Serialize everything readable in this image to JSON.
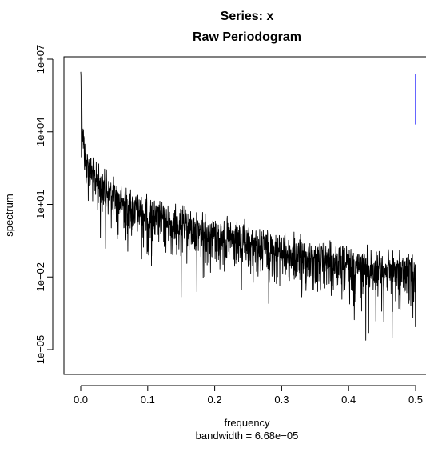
{
  "chart_data": {
    "type": "line",
    "title": "Series: x",
    "subtitle": "Raw Periodogram",
    "xlabel": "frequency",
    "xlabel_note": "bandwidth = 6.68e−05",
    "ylabel": "spectrum",
    "y_scale": "log10",
    "xlim": [
      0,
      0.5
    ],
    "ylim": [
      1e-06,
      10000000.0
    ],
    "x_ticks": [
      {
        "value": 0.0,
        "label": "0.0"
      },
      {
        "value": 0.1,
        "label": "0.1"
      },
      {
        "value": 0.2,
        "label": "0.2"
      },
      {
        "value": 0.3,
        "label": "0.3"
      },
      {
        "value": 0.4,
        "label": "0.4"
      },
      {
        "value": 0.5,
        "label": "0.5"
      }
    ],
    "y_ticks": [
      {
        "value": 1e-05,
        "label": "1e−05"
      },
      {
        "value": 0.01,
        "label": "1e−02"
      },
      {
        "value": 10,
        "label": "1e+01"
      },
      {
        "value": 10000.0,
        "label": "1e+04"
      },
      {
        "value": 10000000.0,
        "label": "1e+07"
      }
    ],
    "grid": false,
    "legend": "none",
    "series": [
      {
        "color": "#000000",
        "points": [
          [
            0.0003,
            3000000
          ],
          [
            0.001,
            300000
          ],
          [
            0.002,
            80000
          ],
          [
            0.003,
            30000
          ],
          [
            0.004,
            12000
          ],
          [
            0.005,
            6000
          ],
          [
            0.006,
            2500
          ],
          [
            0.008,
            1500
          ],
          [
            0.01,
            1000
          ],
          [
            0.015,
            600
          ],
          [
            0.02,
            300
          ],
          [
            0.025,
            220
          ],
          [
            0.03,
            140
          ],
          [
            0.04,
            80
          ],
          [
            0.05,
            45
          ],
          [
            0.06,
            30
          ],
          [
            0.08,
            15
          ],
          [
            0.1,
            8
          ],
          [
            0.12,
            5
          ],
          [
            0.15,
            3
          ],
          [
            0.2,
            1.2
          ],
          [
            0.25,
            0.5
          ],
          [
            0.3,
            0.25
          ],
          [
            0.35,
            0.12
          ],
          [
            0.4,
            0.07
          ],
          [
            0.45,
            0.045
          ],
          [
            0.5,
            0.03
          ]
        ],
        "deep_dips": [
          [
            0.15,
            0.0015
          ],
          [
            0.24,
            0.003
          ],
          [
            0.33,
            0.0015
          ],
          [
            0.39,
            0.0012
          ],
          [
            0.43,
            5e-05
          ],
          [
            0.465,
            3e-05
          ],
          [
            0.475,
            0.0005
          ],
          [
            0.49,
            0.0008
          ]
        ]
      },
      {
        "color": "#0000ff",
        "type": "segment",
        "x": 0.5,
        "y_from": 20000,
        "y_to": 2500000
      }
    ]
  }
}
